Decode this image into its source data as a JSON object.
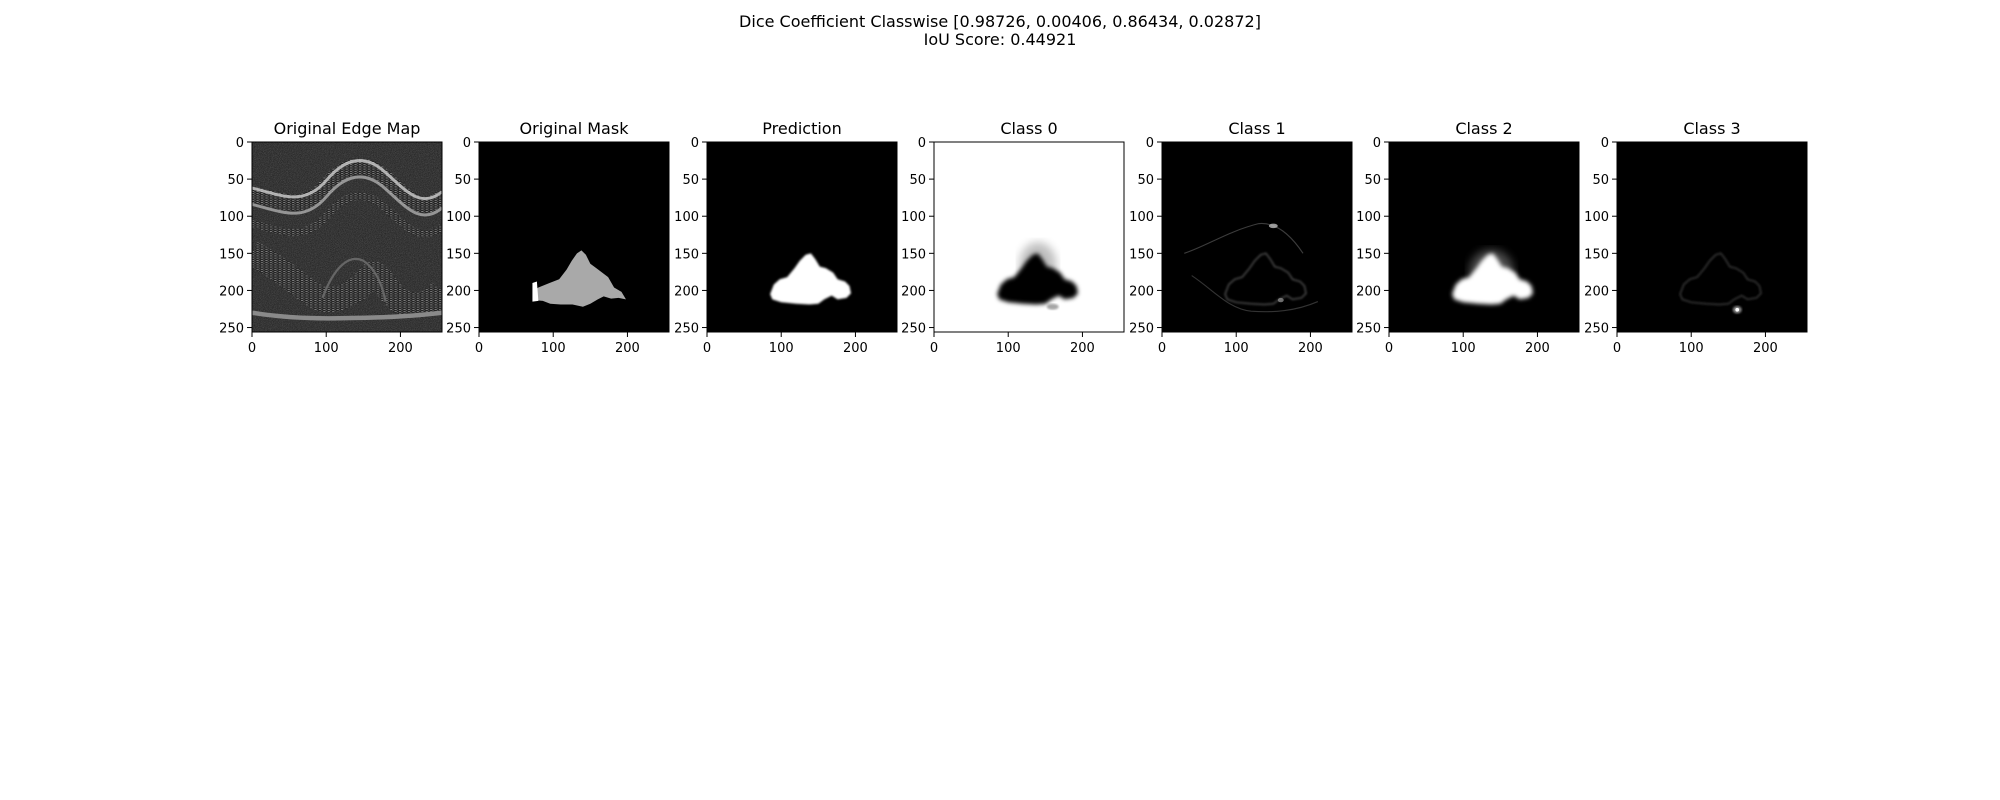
{
  "suptitle": {
    "line1": "Dice Coefficient Classwise [0.98726, 0.00406, 0.86434, 0.02872]",
    "line2": "IoU Score: 0.44921"
  },
  "chart_data": [
    {
      "type": "heatmap",
      "title": "Original Edge Map",
      "image": "edge-map",
      "xlim": [
        0,
        256
      ],
      "ylim": [
        256,
        0
      ],
      "xticks": [
        "0",
        "100",
        "200"
      ],
      "yticks": [
        "0",
        "50",
        "100",
        "150",
        "200",
        "250"
      ]
    },
    {
      "type": "heatmap",
      "title": "Original Mask",
      "image": "mask",
      "xlim": [
        0,
        256
      ],
      "ylim": [
        256,
        0
      ],
      "xticks": [
        "0",
        "100",
        "200"
      ],
      "yticks": [
        "0",
        "50",
        "100",
        "150",
        "200",
        "250"
      ]
    },
    {
      "type": "heatmap",
      "title": "Prediction",
      "image": "prediction",
      "xlim": [
        0,
        256
      ],
      "ylim": [
        256,
        0
      ],
      "xticks": [
        "0",
        "100",
        "200"
      ],
      "yticks": [
        "0",
        "50",
        "100",
        "150",
        "200",
        "250"
      ]
    },
    {
      "type": "heatmap",
      "title": "Class 0",
      "image": "class0",
      "xlim": [
        0,
        256
      ],
      "ylim": [
        256,
        0
      ],
      "xticks": [
        "0",
        "100",
        "200"
      ],
      "yticks": [
        "0",
        "50",
        "100",
        "150",
        "200",
        "250"
      ]
    },
    {
      "type": "heatmap",
      "title": "Class 1",
      "image": "class1",
      "xlim": [
        0,
        256
      ],
      "ylim": [
        256,
        0
      ],
      "xticks": [
        "0",
        "100",
        "200"
      ],
      "yticks": [
        "0",
        "50",
        "100",
        "150",
        "200",
        "250"
      ]
    },
    {
      "type": "heatmap",
      "title": "Class 2",
      "image": "class2",
      "xlim": [
        0,
        256
      ],
      "ylim": [
        256,
        0
      ],
      "xticks": [
        "0",
        "100",
        "200"
      ],
      "yticks": [
        "0",
        "50",
        "100",
        "150",
        "200",
        "250"
      ]
    },
    {
      "type": "heatmap",
      "title": "Class 3",
      "image": "class3",
      "xlim": [
        0,
        256
      ],
      "ylim": [
        256,
        0
      ],
      "xticks": [
        "0",
        "100",
        "200"
      ],
      "yticks": [
        "0",
        "50",
        "100",
        "150",
        "200",
        "250"
      ]
    }
  ]
}
